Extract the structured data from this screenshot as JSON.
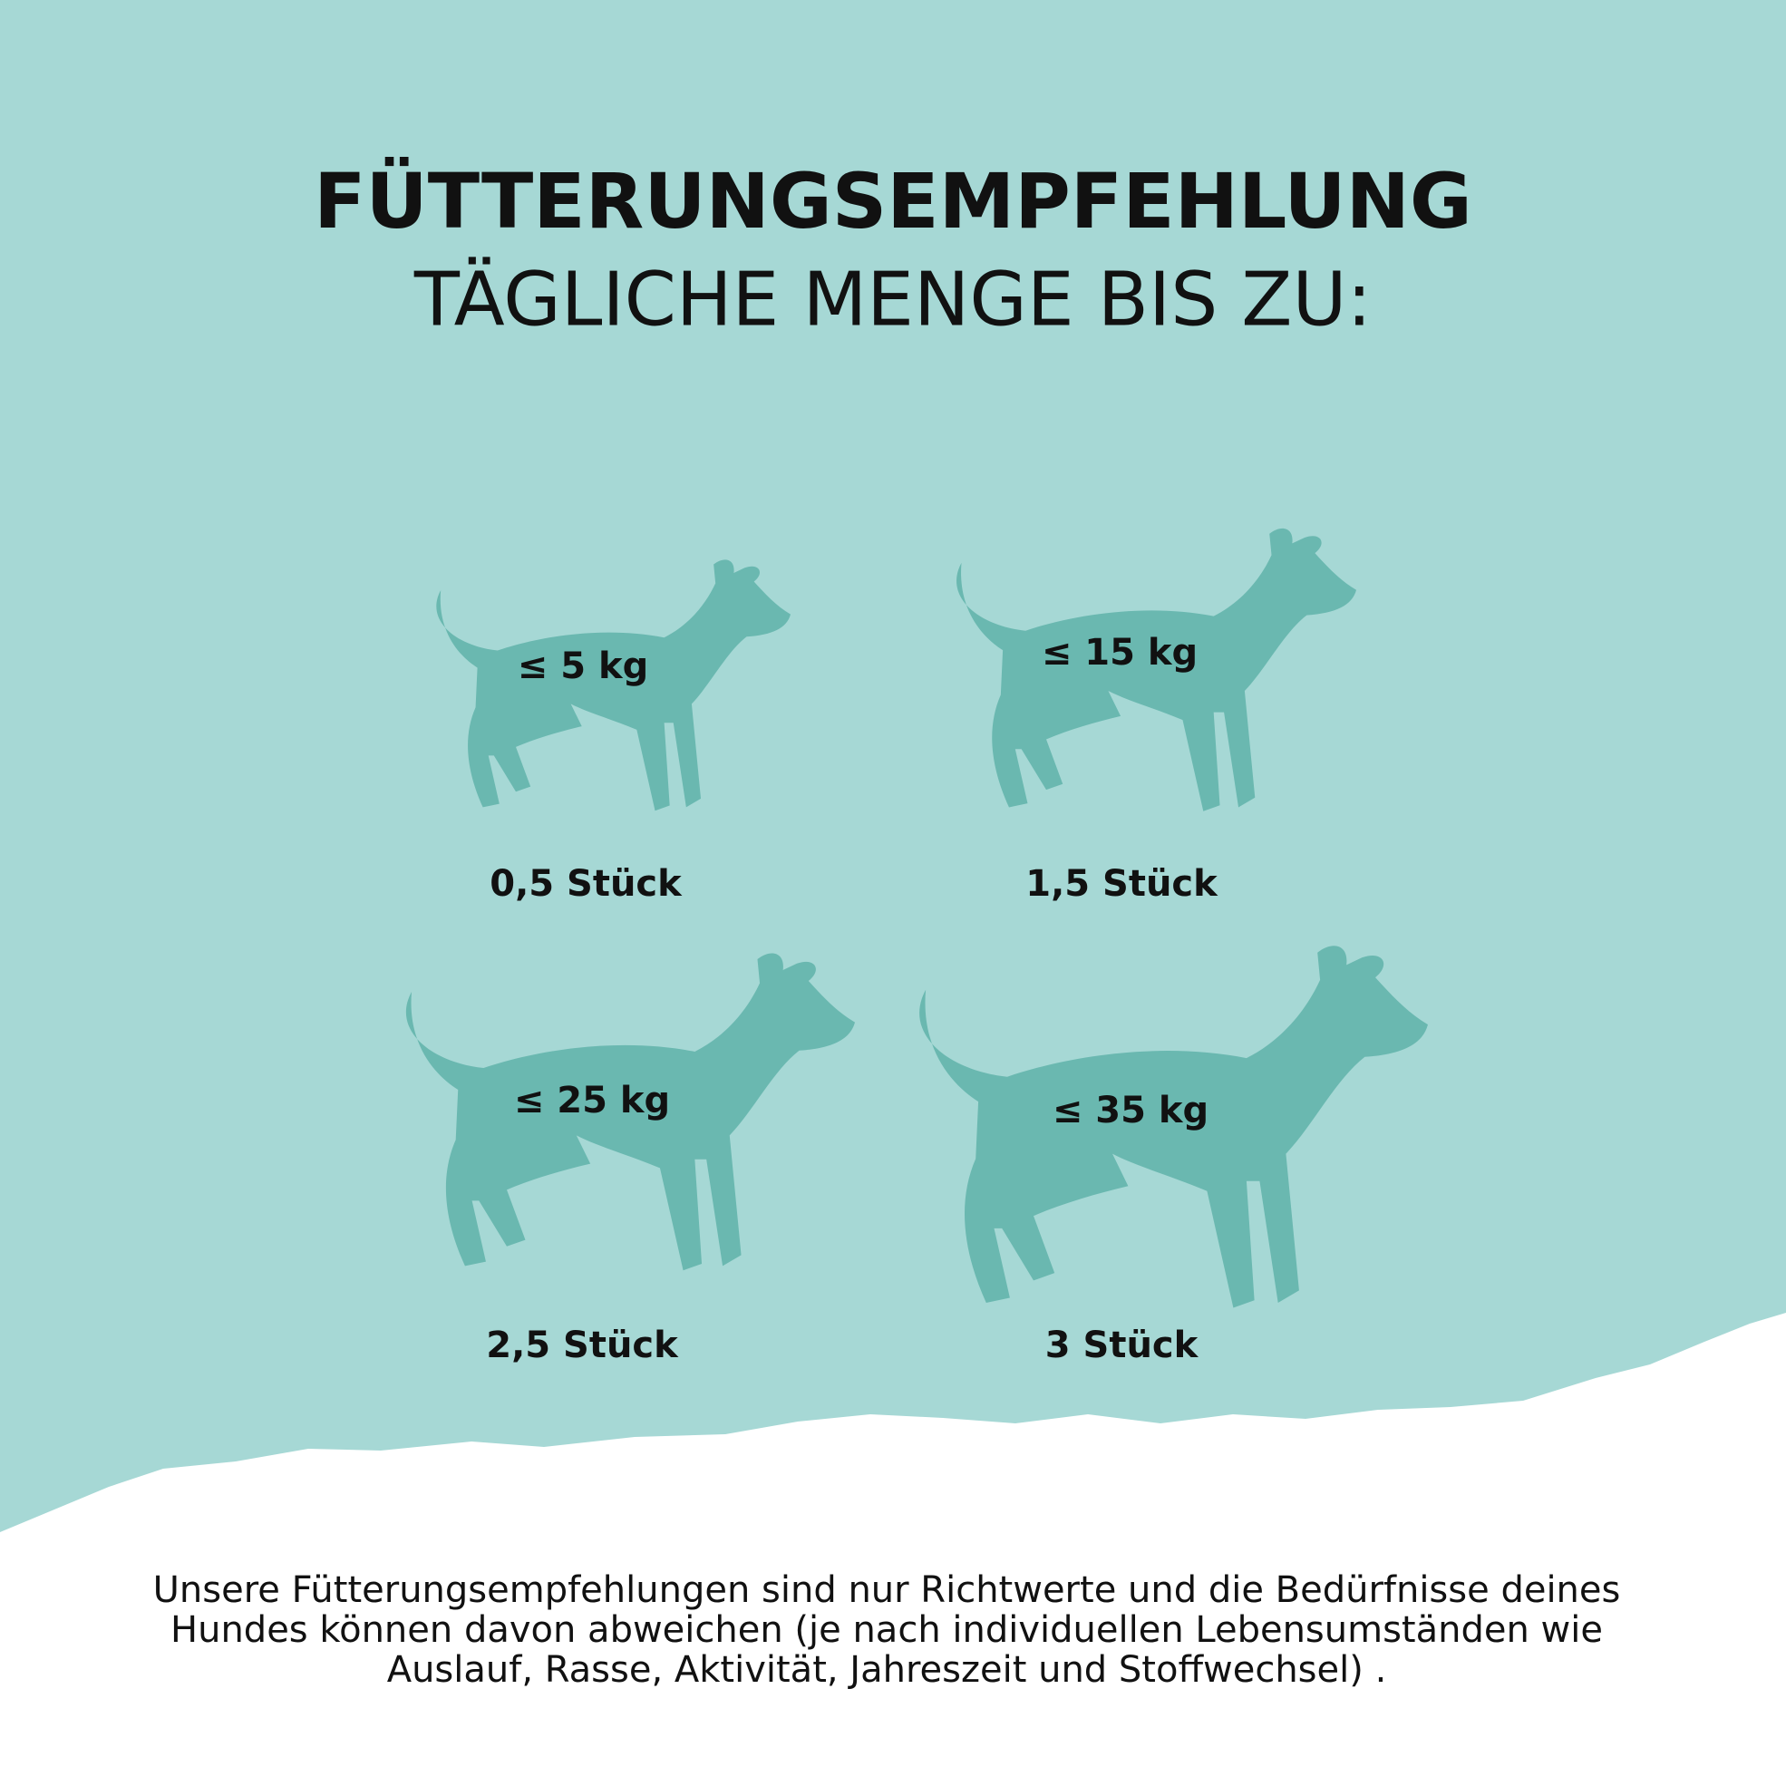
{
  "header": {
    "title": "FÜTTERUNGSEMPFEHLUNG",
    "subtitle": "TÄGLICHE MENGE BIS ZU:"
  },
  "items": [
    {
      "weight": "≤ 5 kg",
      "amount": "0,5 Stück"
    },
    {
      "weight": "≤ 15 kg",
      "amount": "1,5 Stück"
    },
    {
      "weight": "≤ 25 kg",
      "amount": "2,5 Stück"
    },
    {
      "weight": "≤ 35 kg",
      "amount": "3 Stück"
    }
  ],
  "footnote": {
    "lines": [
      "Unsere Fütterungsempfehlungen sind nur Richtwerte und die Bedürfnisse deines",
      "Hundes können davon abweichen (je nach individuellen Lebensumständen wie",
      "Auslauf, Rasse, Aktivität, Jahreszeit und Stoffwechsel) ."
    ]
  }
}
